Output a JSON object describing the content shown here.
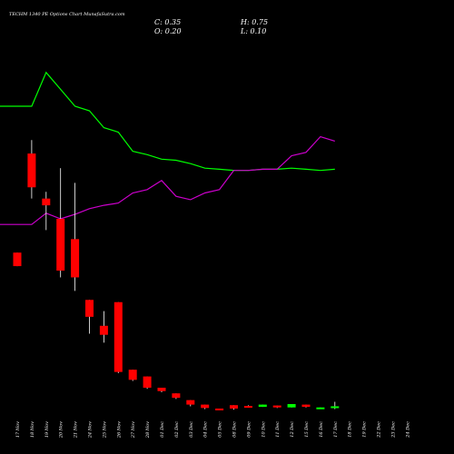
{
  "header": {
    "title": "TECHM 1340 PE Options Chart MunafaSutra.com",
    "close_label": "C: 0.35",
    "open_label": "O: 0.20",
    "high_label": "H: 0.75",
    "low_label": "L: 0.10"
  },
  "colors": {
    "background": "#000000",
    "up": "#00ff00",
    "down": "#ff0000",
    "wick": "#ffffff",
    "line_green": "#00ff00",
    "line_magenta": "#cc00cc"
  },
  "chart_data": {
    "type": "candlestick",
    "categories": [
      "17 Nov",
      "18 Nov",
      "19 Nov",
      "20 Nov",
      "21 Nov",
      "24 Nov",
      "25 Nov",
      "26 Nov",
      "27 Nov",
      "28 Nov",
      "01 Dec",
      "02 Dec",
      "03 Dec",
      "04 Dec",
      "05 Dec",
      "08 Dec",
      "09 Dec",
      "10 Dec",
      "11 Dec",
      "12 Dec",
      "15 Dec",
      "16 Dec",
      "17 Dec",
      "18 Dec",
      "19 Dec",
      "22 Dec",
      "23 Dec",
      "24 Dec"
    ],
    "candles": [
      {
        "o": 14.0,
        "h": 14.0,
        "l": 12.8,
        "c": 12.8
      },
      {
        "o": 22.8,
        "h": 24.0,
        "l": 18.8,
        "c": 19.8
      },
      {
        "o": 18.8,
        "h": 19.4,
        "l": 16.0,
        "c": 18.2
      },
      {
        "o": 17.0,
        "h": 21.5,
        "l": 11.8,
        "c": 12.4
      },
      {
        "o": 15.2,
        "h": 20.2,
        "l": 10.6,
        "c": 11.8
      },
      {
        "o": 9.8,
        "h": 9.8,
        "l": 6.8,
        "c": 8.3
      },
      {
        "o": 7.5,
        "h": 8.8,
        "l": 6.0,
        "c": 6.7
      },
      {
        "o": 9.6,
        "h": 9.6,
        "l": 3.3,
        "c": 3.4
      },
      {
        "o": 3.6,
        "h": 3.6,
        "l": 2.6,
        "c": 2.7
      },
      {
        "o": 3.0,
        "h": 3.0,
        "l": 1.9,
        "c": 2.0
      },
      {
        "o": 2.0,
        "h": 2.0,
        "l": 1.6,
        "c": 1.7
      },
      {
        "o": 1.5,
        "h": 1.5,
        "l": 1.0,
        "c": 1.1
      },
      {
        "o": 0.9,
        "h": 0.9,
        "l": 0.35,
        "c": 0.5
      },
      {
        "o": 0.5,
        "h": 0.5,
        "l": 0.1,
        "c": 0.2
      },
      {
        "o": 0.15,
        "h": 0.15,
        "l": 0.05,
        "c": 0.1
      },
      {
        "o": 0.45,
        "h": 0.45,
        "l": 0.05,
        "c": 0.15
      },
      {
        "o": 0.38,
        "h": 0.44,
        "l": 0.3,
        "c": 0.35
      },
      {
        "o": 0.3,
        "h": 0.5,
        "l": 0.3,
        "c": 0.5
      },
      {
        "o": 0.42,
        "h": 0.42,
        "l": 0.2,
        "c": 0.25
      },
      {
        "o": 0.25,
        "h": 0.55,
        "l": 0.25,
        "c": 0.55
      },
      {
        "o": 0.5,
        "h": 0.5,
        "l": 0.25,
        "c": 0.3
      },
      {
        "o": 0.1,
        "h": 0.25,
        "l": 0.1,
        "c": 0.25
      },
      {
        "o": 0.2,
        "h": 0.75,
        "l": 0.1,
        "c": 0.35
      }
    ],
    "candle_x_indices": [
      0,
      1,
      2,
      3,
      4,
      5,
      6,
      7,
      8,
      9,
      10,
      11,
      12,
      13,
      14,
      15,
      16,
      17,
      18,
      19,
      20,
      21,
      22
    ],
    "lines": [
      {
        "color": "#00ff00",
        "values": [
          27.0,
          27.0,
          30.0,
          28.5,
          27.0,
          26.6,
          25.1,
          24.7,
          23.0,
          22.7,
          22.3,
          22.2,
          21.9,
          21.5,
          21.4,
          21.3,
          21.3,
          21.4,
          21.4,
          21.5,
          21.4,
          21.3,
          21.4
        ]
      },
      {
        "color": "#cc00cc",
        "values": [
          16.5,
          16.5,
          17.5,
          17.0,
          17.4,
          17.9,
          18.2,
          18.4,
          19.3,
          19.6,
          20.4,
          19.0,
          18.7,
          19.3,
          19.6,
          21.3,
          21.3,
          21.4,
          21.4,
          22.6,
          22.9,
          24.3,
          23.9
        ]
      }
    ],
    "ylim": [
      -0.5,
      32
    ]
  }
}
